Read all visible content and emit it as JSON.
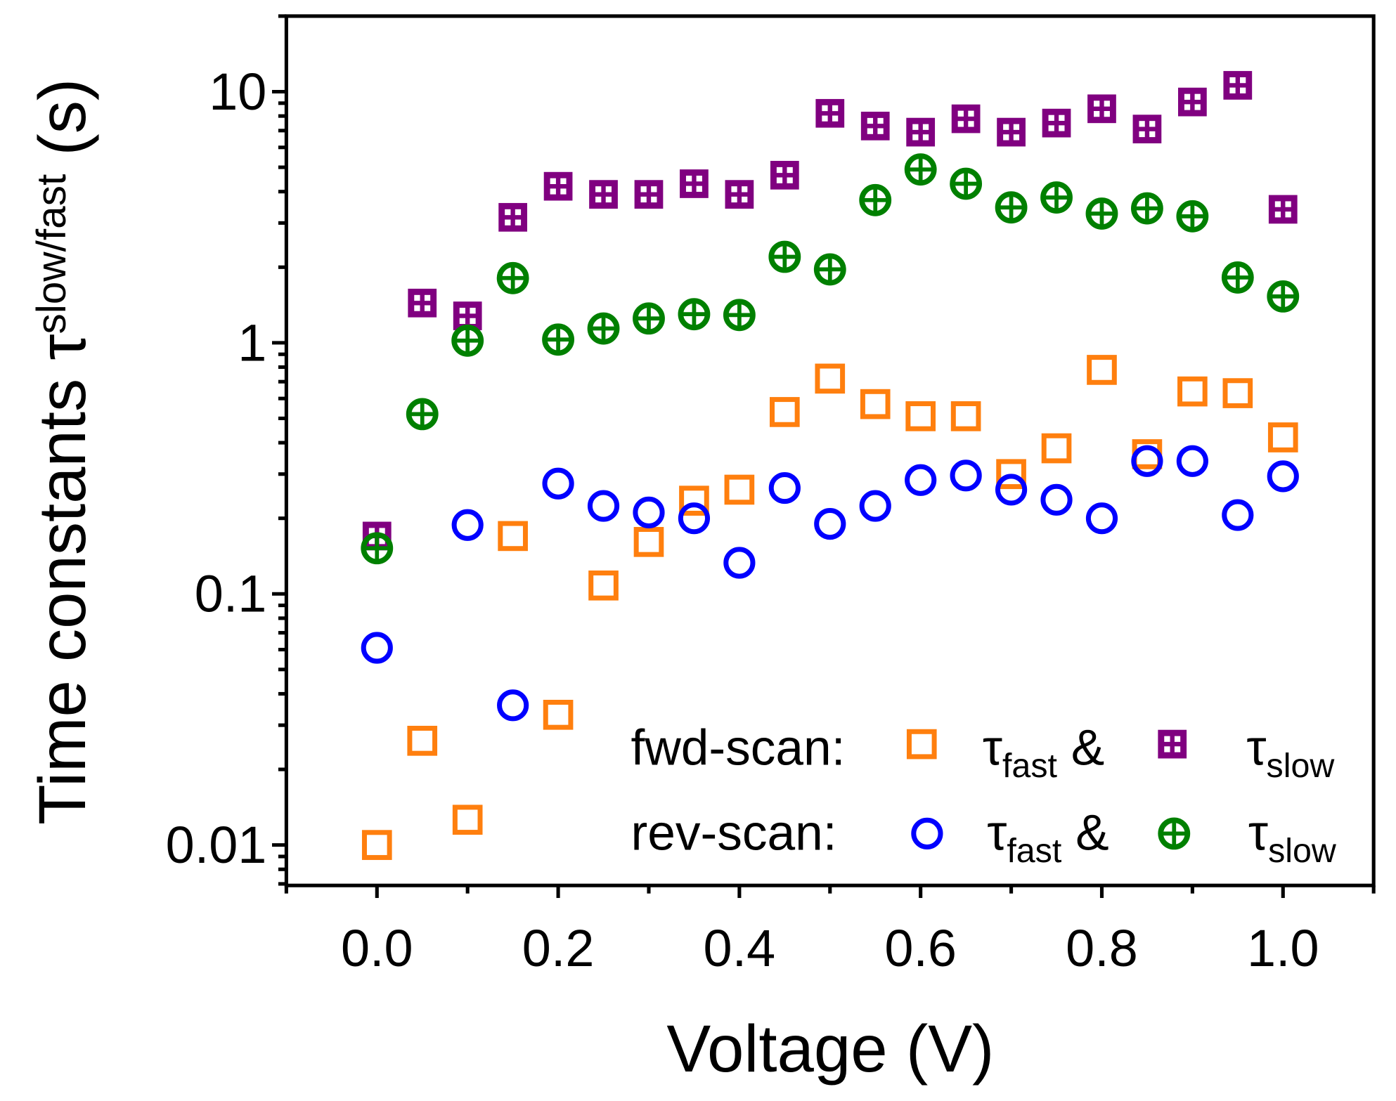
{
  "chart_data": {
    "type": "scatter",
    "title": "",
    "xlabel": "Voltage (V)",
    "ylabel": {
      "main": "Time constants τ",
      "subscript": "slow/fast",
      "unit": "(s)"
    },
    "xlim": [
      -0.1,
      1.1
    ],
    "ylim": [
      0.0069,
      20
    ],
    "yscale": "log",
    "xticks": [
      0.0,
      0.2,
      0.4,
      0.6,
      0.8,
      1.0
    ],
    "xtick_labels": [
      "0.0",
      "0.2",
      "0.4",
      "0.6",
      "0.8",
      "1.0"
    ],
    "yticks": [
      0.01,
      0.1,
      1,
      10
    ],
    "ytick_labels": [
      "0.01",
      "0.1",
      "1",
      "10"
    ],
    "grid": false,
    "legend_placement": "bottom-right",
    "legend": {
      "rows": [
        {
          "label": "fwd-scan:",
          "first": "τ",
          "first_sub": "fast",
          "amp": "&",
          "second": "τ",
          "second_sub": "slow"
        },
        {
          "label": "rev-scan:",
          "first": "τ",
          "first_sub": "fast",
          "amp": "&",
          "second": "τ",
          "second_sub": "slow"
        }
      ]
    },
    "x": [
      0.0,
      0.05,
      0.1,
      0.15,
      0.2,
      0.25,
      0.3,
      0.35,
      0.4,
      0.45,
      0.5,
      0.55,
      0.6,
      0.65,
      0.7,
      0.75,
      0.8,
      0.85,
      0.9,
      0.95,
      1.0
    ],
    "series": [
      {
        "name": "fwd-scan τfast",
        "marker": "square",
        "color": "#ff7f0e",
        "values": [
          0.01,
          0.026,
          0.0126,
          0.17,
          0.033,
          0.108,
          0.161,
          0.235,
          0.26,
          0.53,
          0.72,
          0.57,
          0.51,
          0.51,
          0.3,
          0.38,
          0.78,
          0.36,
          0.64,
          0.63,
          0.42
        ]
      },
      {
        "name": "fwd-scan τslow",
        "marker": "square-cross",
        "color": "#800080",
        "values": [
          0.17,
          1.44,
          1.28,
          3.16,
          4.2,
          3.9,
          3.9,
          4.3,
          3.9,
          4.65,
          8.2,
          7.3,
          6.9,
          7.8,
          6.9,
          7.5,
          8.55,
          7.1,
          9.1,
          10.6,
          3.4
        ]
      },
      {
        "name": "rev-scan τfast",
        "marker": "circle",
        "color": "#0000ff",
        "values": [
          0.061,
          null,
          0.188,
          0.036,
          0.275,
          0.224,
          0.211,
          0.2,
          0.133,
          0.264,
          0.19,
          0.224,
          0.284,
          0.296,
          0.26,
          0.237,
          0.2,
          0.338,
          0.338,
          0.206,
          0.294
        ]
      },
      {
        "name": "rev-scan τslow",
        "marker": "circle-cross",
        "color": "#008000",
        "values": [
          0.152,
          0.52,
          1.02,
          1.81,
          1.03,
          1.14,
          1.25,
          1.3,
          1.29,
          2.2,
          1.96,
          3.7,
          4.9,
          4.3,
          3.46,
          3.79,
          3.27,
          3.43,
          3.19,
          1.82,
          1.53
        ]
      }
    ]
  }
}
